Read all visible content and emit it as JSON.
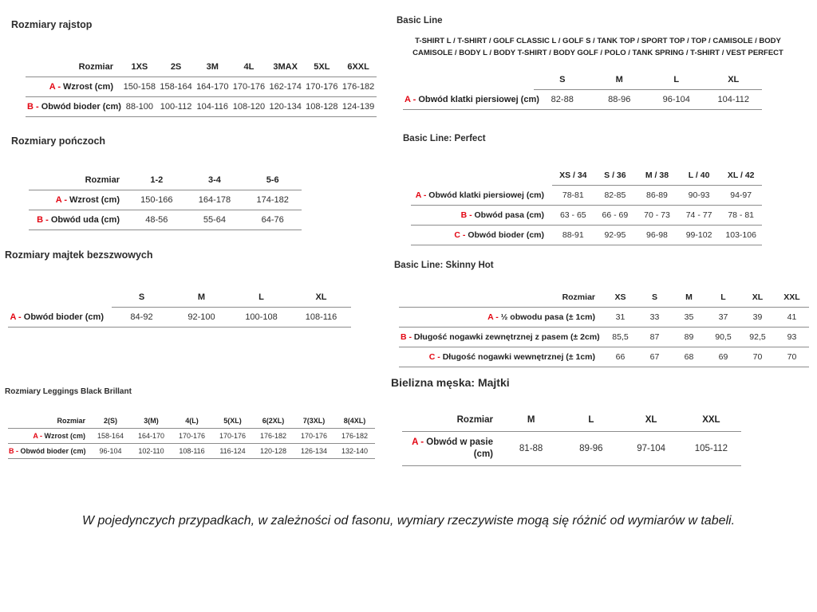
{
  "sections": {
    "rajstopy": {
      "title": "Rozmiary rajstop",
      "table": {
        "header": [
          "Rozmiar",
          "1XS",
          "2S",
          "3M",
          "4L",
          "3MAX",
          "5XL",
          "6XXL"
        ],
        "rows": [
          {
            "letter": "A",
            "label": "Wzrost (cm)",
            "values": [
              "150-158",
              "158-164",
              "164-170",
              "170-176",
              "162-174",
              "170-176",
              "176-182"
            ]
          },
          {
            "letter": "B",
            "label": "Obwód bioder (cm)",
            "values": [
              "88-100",
              "100-112",
              "104-116",
              "108-120",
              "120-134",
              "108-128",
              "124-139"
            ]
          }
        ]
      }
    },
    "ponczochy": {
      "title": "Rozmiary pończoch",
      "table": {
        "header": [
          "Rozmiar",
          "1-2",
          "3-4",
          "5-6"
        ],
        "rows": [
          {
            "letter": "A",
            "label": "Wzrost (cm)",
            "values": [
              "150-166",
              "164-178",
              "174-182"
            ]
          },
          {
            "letter": "B",
            "label": "Obwód uda (cm)",
            "values": [
              "48-56",
              "55-64",
              "64-76"
            ]
          }
        ]
      }
    },
    "majtki_bezszwowe": {
      "title": "Rozmiary majtek bezszwowych",
      "table": {
        "header": [
          "",
          "S",
          "M",
          "L",
          "XL"
        ],
        "rows": [
          {
            "letter": "A",
            "label": "Obwód bioder (cm)",
            "values": [
              "84-92",
              "92-100",
              "100-108",
              "108-116"
            ]
          }
        ]
      }
    },
    "leggings": {
      "title": "Rozmiary Leggings Black Brillant",
      "table": {
        "header": [
          "Rozmiar",
          "2(S)",
          "3(M)",
          "4(L)",
          "5(XL)",
          "6(2XL)",
          "7(3XL)",
          "8(4XL)"
        ],
        "rows": [
          {
            "letter": "A",
            "label": "Wzrost (cm)",
            "values": [
              "158-164",
              "164-170",
              "170-176",
              "170-176",
              "176-182",
              "170-176",
              "176-182"
            ]
          },
          {
            "letter": "B",
            "label": "Obwód bioder (cm)",
            "values": [
              "96-104",
              "102-110",
              "108-116",
              "116-124",
              "120-128",
              "126-134",
              "132-140"
            ]
          }
        ]
      }
    },
    "basic_line": {
      "title": "Basic Line",
      "subtitle": "T-SHIRT L / T-SHIRT / GOLF CLASSIC L / GOLF S / TANK TOP / SPORT TOP / TOP / CAMISOLE / BODY CAMISOLE / BODY L / BODY T-SHIRT / BODY GOLF / POLO / TANK SPRING / T-SHIRT / VEST PERFECT",
      "table": {
        "header": [
          "",
          "S",
          "M",
          "L",
          "XL"
        ],
        "rows": [
          {
            "letter": "A",
            "label": "Obwód klatki piersiowej (cm)",
            "values": [
              "82-88",
              "88-96",
              "96-104",
              "104-112"
            ]
          }
        ]
      }
    },
    "basic_line_perfect": {
      "title": "Basic Line: Perfect",
      "table": {
        "header": [
          "",
          "XS / 34",
          "S / 36",
          "M / 38",
          "L / 40",
          "XL / 42"
        ],
        "rows": [
          {
            "letter": "A",
            "label": "Obwód klatki piersiowej (cm)",
            "values": [
              "78-81",
              "82-85",
              "86-89",
              "90-93",
              "94-97"
            ]
          },
          {
            "letter": "B",
            "label": "Obwód pasa (cm)",
            "values": [
              "63 - 65",
              "66 - 69",
              "70 - 73",
              "74 - 77",
              "78 - 81"
            ]
          },
          {
            "letter": "C",
            "label": "Obwód bioder (cm)",
            "values": [
              "88-91",
              "92-95",
              "96-98",
              "99-102",
              "103-106"
            ]
          }
        ]
      }
    },
    "basic_line_skinny_hot": {
      "title": "Basic Line: Skinny Hot",
      "table": {
        "header": [
          "Rozmiar",
          "XS",
          "S",
          "M",
          "L",
          "XL",
          "XXL"
        ],
        "rows": [
          {
            "letter": "A",
            "label": "½ obwodu pasa (± 1cm)",
            "values": [
              "31",
              "33",
              "35",
              "37",
              "39",
              "41"
            ]
          },
          {
            "letter": "B",
            "label": "Długość nogawki zewnętrznej z pasem (± 2cm)",
            "values": [
              "85,5",
              "87",
              "89",
              "90,5",
              "92,5",
              "93"
            ]
          },
          {
            "letter": "C",
            "label": "Długość nogawki wewnętrznej (± 1cm)",
            "values": [
              "66",
              "67",
              "68",
              "69",
              "70",
              "70"
            ]
          }
        ]
      }
    },
    "bielizna_meska": {
      "title": "Bielizna męska: Majtki",
      "table": {
        "header": [
          "Rozmiar",
          "M",
          "L",
          "XL",
          "XXL"
        ],
        "rows": [
          {
            "letter": "A",
            "label": "Obwód w pasie (cm)",
            "values": [
              "81-88",
              "89-96",
              "97-104",
              "105-112"
            ]
          }
        ]
      }
    }
  },
  "footnote": "W pojedynczych przypadkach, w zależności od fasonu, wymiary rzeczywiste mogą się różnić od wymiarów w tabeli."
}
